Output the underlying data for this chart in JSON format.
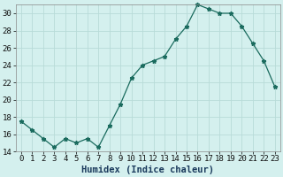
{
  "x": [
    0,
    1,
    2,
    3,
    4,
    5,
    6,
    7,
    8,
    9,
    10,
    11,
    12,
    13,
    14,
    15,
    16,
    17,
    18,
    19,
    20,
    21,
    22,
    23
  ],
  "y": [
    17.5,
    16.5,
    15.5,
    14.5,
    15.5,
    15.0,
    15.5,
    14.5,
    17.0,
    19.5,
    22.5,
    24.0,
    24.5,
    25.0,
    27.0,
    28.5,
    31.0,
    30.5,
    30.0,
    30.0,
    28.5,
    26.5,
    24.5,
    21.5
  ],
  "line_color": "#1a6b5e",
  "marker_size": 3.5,
  "bg_color": "#d4f0ee",
  "grid_color": "#b8dbd8",
  "xlabel": "Humidex (Indice chaleur)",
  "ylim": [
    14,
    31
  ],
  "xlim_min": -0.5,
  "xlim_max": 23.5,
  "yticks": [
    14,
    16,
    18,
    20,
    22,
    24,
    26,
    28,
    30
  ],
  "xticks": [
    0,
    1,
    2,
    3,
    4,
    5,
    6,
    7,
    8,
    9,
    10,
    11,
    12,
    13,
    14,
    15,
    16,
    17,
    18,
    19,
    20,
    21,
    22,
    23
  ],
  "tick_fontsize": 6.5,
  "xlabel_fontsize": 7.5
}
